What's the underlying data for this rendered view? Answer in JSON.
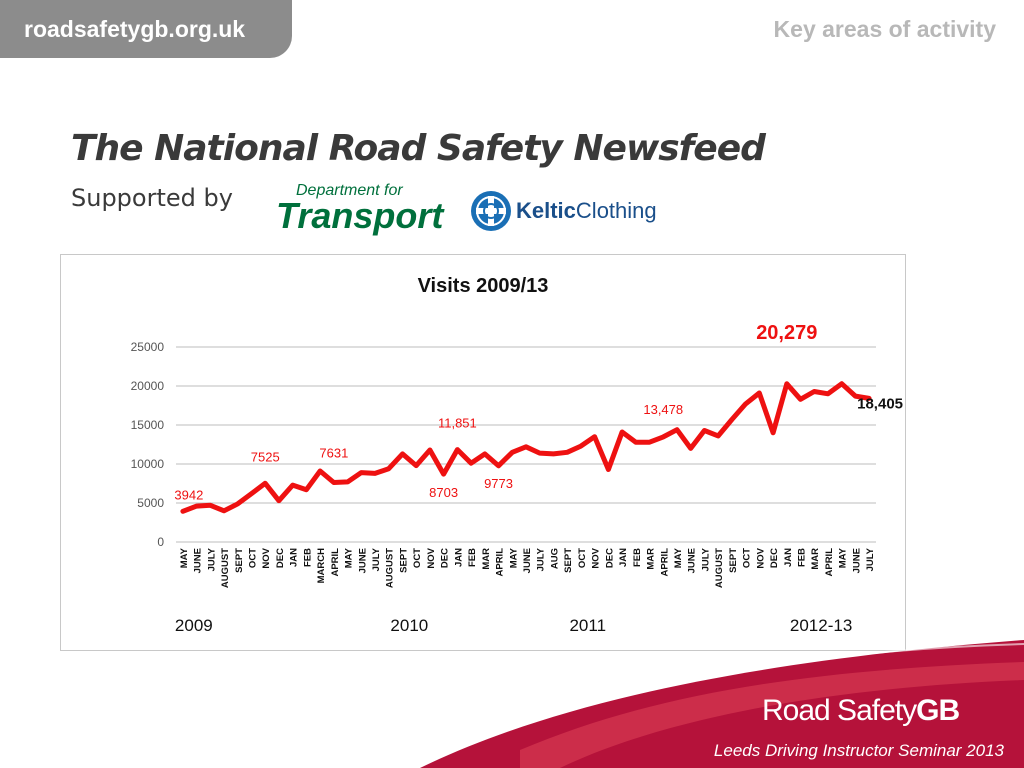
{
  "header": {
    "site_name": "roadsafetygb.org.uk",
    "section_label": "Key areas of activity"
  },
  "slide": {
    "title": "The National Road Safety Newsfeed",
    "supported_by": "Supported by"
  },
  "logos": {
    "dft_line1": "Department for",
    "dft_line2": "Transport",
    "keltic_bold": "Keltic",
    "keltic_rest": "Clothing",
    "rsgb_light": "Road Safety",
    "rsgb_bold": "GB"
  },
  "footer": {
    "caption": "Leeds Driving Instructor Seminar 2013"
  },
  "colors": {
    "line": "#ee1111",
    "grid": "#bdbdbd",
    "brand_red": "#b5123a",
    "header_gray": "#8c8c8c"
  },
  "chart_data": {
    "type": "line",
    "title": "Visits 2009/13",
    "ylim": [
      0,
      25000
    ],
    "yticks": [
      0,
      5000,
      10000,
      15000,
      20000,
      25000
    ],
    "ytick_labels": [
      "0",
      "5000",
      "10000",
      "15000",
      "20000",
      "25000"
    ],
    "grid": true,
    "categories": [
      "MAY",
      "JUNE",
      "JULY",
      "AUGUST",
      "SEPT",
      "OCT",
      "NOV",
      "DEC",
      "JAN",
      "FEB",
      "MARCH",
      "APRIL",
      "MAY",
      "JUNE",
      "JULY",
      "AUGUST",
      "SEPT",
      "OCT",
      "NOV",
      "DEC",
      "JAN",
      "FEB",
      "MAR",
      "APRIL",
      "MAY",
      "JUNE",
      "JULY",
      "AUG",
      "SEPT",
      "OCT",
      "NOV",
      "DEC",
      "JAN",
      "FEB",
      "MAR",
      "APRIL",
      "MAY",
      "JUNE",
      "JULY",
      "AUGUST",
      "SEPT",
      "OCT",
      "NOV",
      "DEC",
      "JAN",
      "FEB",
      "MAR",
      "APRIL",
      "MAY",
      "JUNE",
      "JULY"
    ],
    "year_labels": [
      {
        "label": "2009",
        "index": 0.8
      },
      {
        "label": "2010",
        "index": 16.5
      },
      {
        "label": "2011",
        "index": 29.5
      },
      {
        "label": "2012-13",
        "index": 46.5
      }
    ],
    "series": [
      {
        "values": [
          3942,
          4600,
          4700,
          4000,
          4900,
          6200,
          7525,
          5300,
          7300,
          6700,
          9100,
          7631,
          7700,
          8900,
          8800,
          9400,
          11300,
          9800,
          11800,
          8703,
          11851,
          10100,
          11300,
          9773,
          11500,
          12200,
          11400,
          11300,
          11500,
          12300,
          13500,
          9300,
          14100,
          12800,
          12800,
          13478,
          14400,
          12000,
          14300,
          13600,
          15700,
          17700,
          19100,
          14000,
          20279,
          18300,
          19300,
          19000,
          20300,
          18700,
          18405
        ]
      }
    ],
    "annotations": [
      {
        "index": 0,
        "text": "3942",
        "color": "#ee1111",
        "bold": false
      },
      {
        "index": 6,
        "text": "7525",
        "color": "#ee1111",
        "bold": false
      },
      {
        "index": 11,
        "text": "7631",
        "color": "#ee1111",
        "bold": false
      },
      {
        "index": 19,
        "text": "8703",
        "color": "#ee1111",
        "bold": false
      },
      {
        "index": 20,
        "text": "11,851",
        "color": "#ee1111",
        "bold": false
      },
      {
        "index": 23,
        "text": "9773",
        "color": "#ee1111",
        "bold": false
      },
      {
        "index": 35,
        "text": "13,478",
        "color": "#ee1111",
        "bold": false
      },
      {
        "index": 44,
        "text": "20,279",
        "color": "#ee1111",
        "bold": true
      },
      {
        "index": 50,
        "text": "18,405",
        "color": "#111111",
        "bold": true
      }
    ]
  }
}
